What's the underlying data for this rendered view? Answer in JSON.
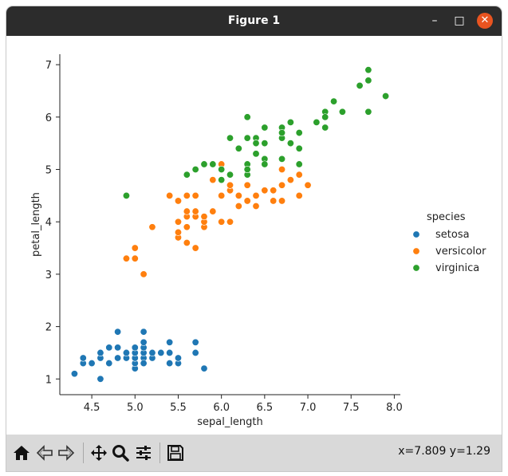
{
  "window": {
    "title": "Figure 1",
    "minimize_glyph": "–",
    "maximize_glyph": "□",
    "close_glyph": "✕"
  },
  "toolbar": {
    "buttons": [
      {
        "name": "home-icon",
        "glyph": "⌂"
      },
      {
        "name": "back-icon",
        "glyph": "⇦"
      },
      {
        "name": "forward-icon",
        "glyph": "⇨"
      },
      {
        "name": "pan-icon",
        "glyph": "✥"
      },
      {
        "name": "zoom-icon",
        "glyph": "🔍"
      },
      {
        "name": "subplots-icon",
        "glyph": "☰"
      },
      {
        "name": "save-icon",
        "glyph": "💾"
      }
    ],
    "coords": "x=7.809 y=1.29"
  },
  "colors": {
    "setosa": "#1f77b4",
    "versicolor": "#ff7f0e",
    "virginica": "#2ca02c"
  },
  "chart_data": {
    "type": "scatter",
    "title": "",
    "xlabel": "sepal_length",
    "ylabel": "petal_length",
    "xlim": [
      4.13,
      8.07
    ],
    "ylim": [
      0.7,
      7.2
    ],
    "xticks": [
      4.5,
      5.0,
      5.5,
      6.0,
      6.5,
      7.0,
      7.5,
      8.0
    ],
    "xtick_labels": [
      "4.5",
      "5.0",
      "5.5",
      "6.0",
      "6.5",
      "7.0",
      "7.5",
      "8.0"
    ],
    "yticks": [
      1,
      2,
      3,
      4,
      5,
      6,
      7
    ],
    "ytick_labels": [
      "1",
      "2",
      "3",
      "4",
      "5",
      "6",
      "7"
    ],
    "grid": false,
    "legend": {
      "title": "species",
      "placement": "outside-right"
    },
    "series": [
      {
        "name": "setosa",
        "x": [
          4.3,
          4.4,
          4.4,
          4.5,
          4.6,
          4.6,
          4.6,
          4.7,
          4.7,
          4.8,
          4.8,
          4.8,
          4.9,
          4.9,
          5.0,
          5.0,
          5.0,
          5.0,
          5.0,
          5.1,
          5.1,
          5.1,
          5.1,
          5.1,
          5.1,
          5.2,
          5.2,
          5.3,
          5.4,
          5.4,
          5.4,
          5.5,
          5.5,
          5.7,
          5.7,
          5.8
        ],
        "y": [
          1.1,
          1.3,
          1.4,
          1.3,
          1.0,
          1.4,
          1.5,
          1.3,
          1.6,
          1.4,
          1.6,
          1.9,
          1.4,
          1.5,
          1.2,
          1.3,
          1.4,
          1.5,
          1.6,
          1.4,
          1.5,
          1.6,
          1.7,
          1.9,
          1.3,
          1.4,
          1.5,
          1.5,
          1.3,
          1.5,
          1.7,
          1.3,
          1.4,
          1.5,
          1.7,
          1.2
        ]
      },
      {
        "name": "versicolor",
        "x": [
          4.9,
          5.0,
          5.0,
          5.1,
          5.2,
          5.4,
          5.5,
          5.5,
          5.5,
          5.5,
          5.6,
          5.6,
          5.6,
          5.6,
          5.6,
          5.7,
          5.7,
          5.7,
          5.7,
          5.7,
          5.8,
          5.8,
          5.8,
          5.9,
          5.9,
          6.0,
          6.0,
          6.0,
          6.0,
          6.1,
          6.1,
          6.1,
          6.2,
          6.2,
          6.3,
          6.3,
          6.3,
          6.4,
          6.4,
          6.5,
          6.6,
          6.6,
          6.7,
          6.7,
          6.7,
          6.8,
          6.9,
          6.9,
          7.0,
          6.0,
          6.1,
          6.3
        ],
        "y": [
          3.3,
          3.3,
          3.5,
          3.0,
          3.9,
          4.5,
          3.7,
          3.8,
          4.0,
          4.4,
          3.6,
          3.9,
          4.1,
          4.2,
          4.5,
          3.5,
          4.1,
          4.2,
          4.5,
          4.2,
          3.9,
          4.0,
          4.1,
          4.2,
          4.8,
          4.0,
          4.5,
          5.1,
          4.5,
          4.0,
          4.6,
          4.7,
          4.3,
          4.5,
          4.4,
          4.7,
          4.9,
          4.3,
          4.5,
          4.6,
          4.4,
          4.6,
          4.4,
          4.7,
          5.0,
          4.8,
          4.9,
          4.5,
          4.7,
          4.5,
          4.7,
          4.7
        ]
      },
      {
        "name": "virginica",
        "x": [
          4.9,
          5.6,
          5.7,
          5.8,
          5.8,
          5.9,
          6.0,
          6.0,
          6.1,
          6.1,
          6.2,
          6.3,
          6.3,
          6.3,
          6.3,
          6.3,
          6.4,
          6.4,
          6.4,
          6.4,
          6.4,
          6.5,
          6.5,
          6.5,
          6.5,
          6.7,
          6.7,
          6.7,
          6.7,
          6.7,
          6.8,
          6.8,
          6.9,
          6.9,
          6.9,
          7.1,
          7.2,
          7.2,
          7.2,
          7.3,
          7.4,
          7.6,
          7.7,
          7.7,
          7.7,
          7.7,
          7.9
        ],
        "y": [
          4.5,
          4.9,
          5.0,
          5.1,
          5.1,
          5.1,
          4.8,
          5.0,
          5.6,
          4.9,
          5.4,
          5.6,
          6.0,
          5.1,
          4.9,
          5.0,
          5.6,
          5.3,
          5.5,
          5.5,
          5.3,
          5.8,
          5.5,
          5.2,
          5.1,
          5.7,
          5.8,
          5.6,
          5.7,
          5.2,
          5.9,
          5.5,
          5.7,
          5.4,
          5.1,
          5.9,
          6.1,
          6.0,
          5.8,
          6.3,
          6.1,
          6.6,
          6.7,
          6.9,
          6.7,
          6.1,
          6.4
        ]
      }
    ]
  }
}
